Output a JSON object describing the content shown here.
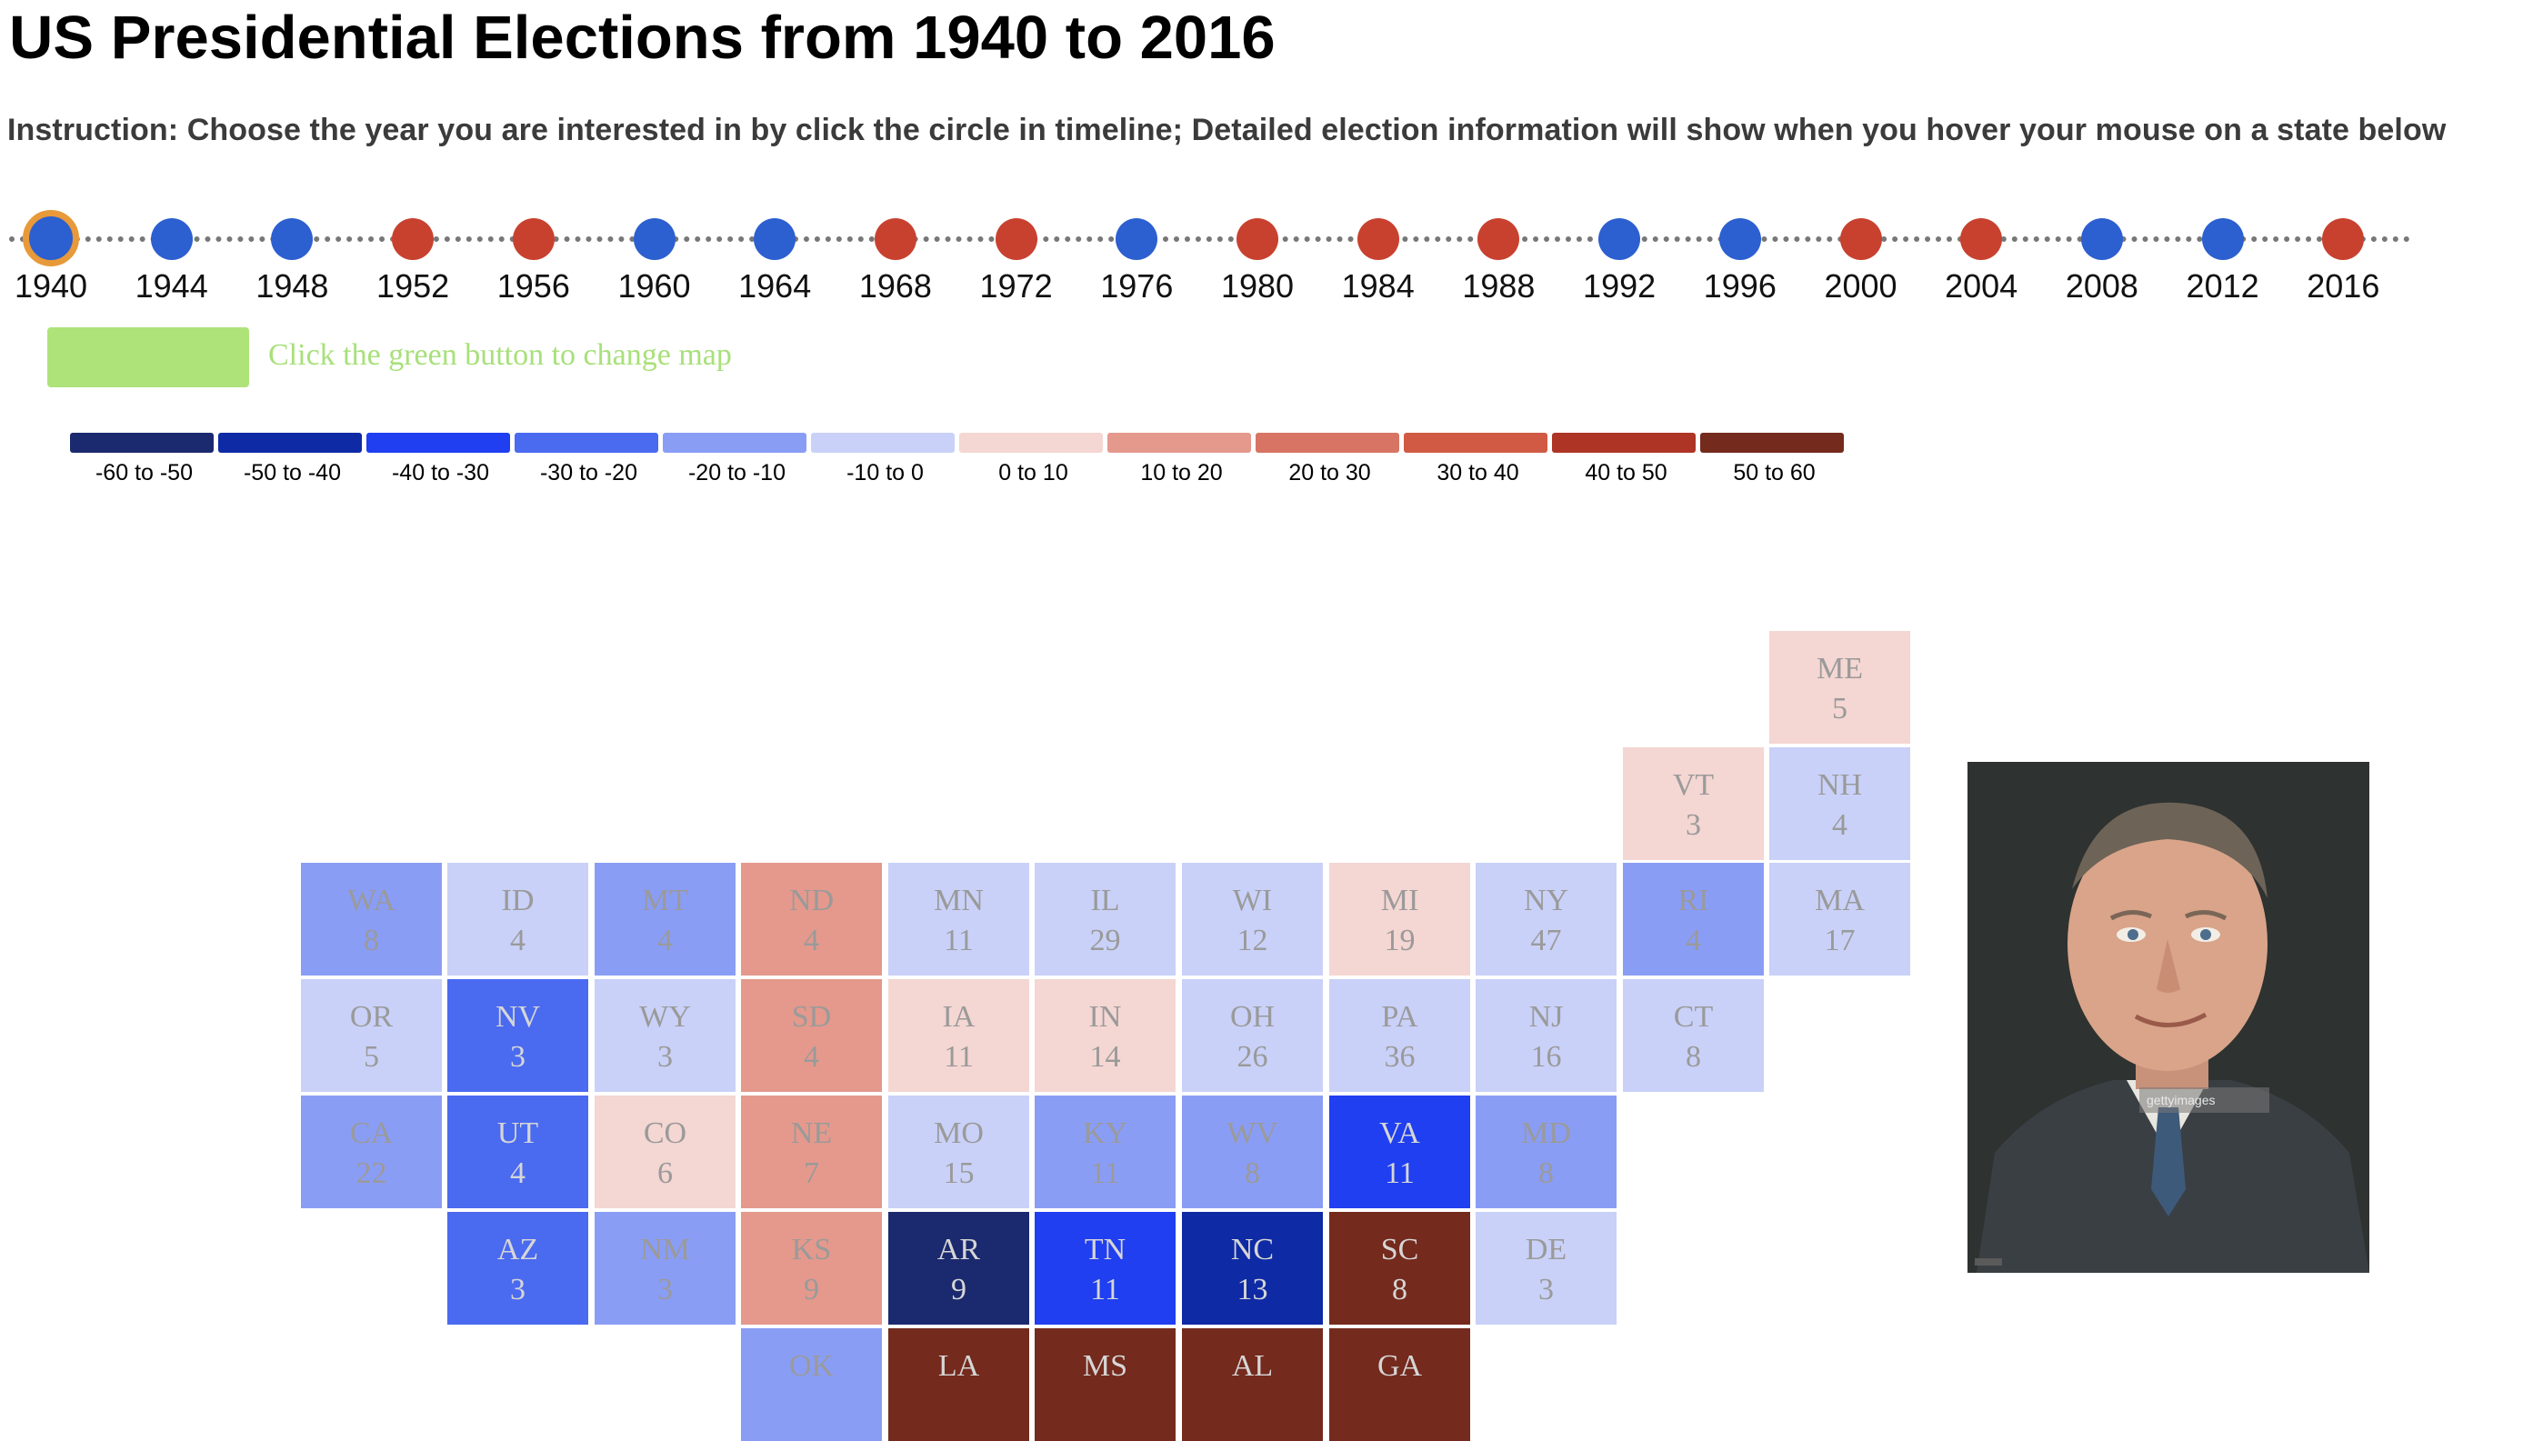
{
  "page": {
    "title": "US Presidential Elections from 1940 to 2016",
    "instruction": "Instruction: Choose the year you are interested in by click the circle in timeline; Detailed election information will show when you hover your mouse on a state below"
  },
  "timeline": {
    "selected_year": "1940",
    "selected_ring_color": "#e8993a",
    "years": [
      {
        "year": "1940",
        "party_color": "#2c5fcf"
      },
      {
        "year": "1944",
        "party_color": "#2c5fcf"
      },
      {
        "year": "1948",
        "party_color": "#2c5fcf"
      },
      {
        "year": "1952",
        "party_color": "#c8412f"
      },
      {
        "year": "1956",
        "party_color": "#c8412f"
      },
      {
        "year": "1960",
        "party_color": "#2c5fcf"
      },
      {
        "year": "1964",
        "party_color": "#2c5fcf"
      },
      {
        "year": "1968",
        "party_color": "#c8412f"
      },
      {
        "year": "1972",
        "party_color": "#c8412f"
      },
      {
        "year": "1976",
        "party_color": "#2c5fcf"
      },
      {
        "year": "1980",
        "party_color": "#c8412f"
      },
      {
        "year": "1984",
        "party_color": "#c8412f"
      },
      {
        "year": "1988",
        "party_color": "#c8412f"
      },
      {
        "year": "1992",
        "party_color": "#2c5fcf"
      },
      {
        "year": "1996",
        "party_color": "#2c5fcf"
      },
      {
        "year": "2000",
        "party_color": "#c8412f"
      },
      {
        "year": "2004",
        "party_color": "#c8412f"
      },
      {
        "year": "2008",
        "party_color": "#2c5fcf"
      },
      {
        "year": "2012",
        "party_color": "#2c5fcf"
      },
      {
        "year": "2016",
        "party_color": "#c8412f"
      }
    ]
  },
  "map_toggle": {
    "button_color": "#aee37a",
    "hint": "Click the green button to change map"
  },
  "legend": [
    {
      "label": "-60 to -50",
      "color": "#1b2a6e"
    },
    {
      "label": "-50 to -40",
      "color": "#0e2aa4"
    },
    {
      "label": "-40 to -30",
      "color": "#1f3ff0"
    },
    {
      "label": "-30 to -20",
      "color": "#4a6af0"
    },
    {
      "label": "-20 to -10",
      "color": "#8a9df5"
    },
    {
      "label": "-10 to 0",
      "color": "#c9d1f8"
    },
    {
      "label": "0 to 10",
      "color": "#f4d6d2"
    },
    {
      "label": "10 to 20",
      "color": "#e4998c"
    },
    {
      "label": "20 to 30",
      "color": "#d87464"
    },
    {
      "label": "30 to 40",
      "color": "#d05a44"
    },
    {
      "label": "40 to 50",
      "color": "#ae3426"
    },
    {
      "label": "50 to 60",
      "color": "#742a1d"
    }
  ],
  "states": [
    {
      "abbr": "ME",
      "ev": "5",
      "color": "#f4d6d2",
      "dark": false
    },
    {
      "abbr": "VT",
      "ev": "3",
      "color": "#f4d6d2",
      "dark": false
    },
    {
      "abbr": "NH",
      "ev": "4",
      "color": "#c9d1f8",
      "dark": false
    },
    {
      "abbr": "WA",
      "ev": "8",
      "color": "#8a9df5",
      "dark": false
    },
    {
      "abbr": "ID",
      "ev": "4",
      "color": "#c9d1f8",
      "dark": false
    },
    {
      "abbr": "MT",
      "ev": "4",
      "color": "#8a9df5",
      "dark": false
    },
    {
      "abbr": "ND",
      "ev": "4",
      "color": "#e4998c",
      "dark": false
    },
    {
      "abbr": "MN",
      "ev": "11",
      "color": "#c9d1f8",
      "dark": false
    },
    {
      "abbr": "IL",
      "ev": "29",
      "color": "#c9d1f8",
      "dark": false
    },
    {
      "abbr": "WI",
      "ev": "12",
      "color": "#c9d1f8",
      "dark": false
    },
    {
      "abbr": "MI",
      "ev": "19",
      "color": "#f4d6d2",
      "dark": false
    },
    {
      "abbr": "NY",
      "ev": "47",
      "color": "#c9d1f8",
      "dark": false
    },
    {
      "abbr": "RI",
      "ev": "4",
      "color": "#8a9df5",
      "dark": false
    },
    {
      "abbr": "MA",
      "ev": "17",
      "color": "#c9d1f8",
      "dark": false
    },
    {
      "abbr": "OR",
      "ev": "5",
      "color": "#c9d1f8",
      "dark": false
    },
    {
      "abbr": "NV",
      "ev": "3",
      "color": "#4a6af0",
      "dark": true
    },
    {
      "abbr": "WY",
      "ev": "3",
      "color": "#c9d1f8",
      "dark": false
    },
    {
      "abbr": "SD",
      "ev": "4",
      "color": "#e4998c",
      "dark": false
    },
    {
      "abbr": "IA",
      "ev": "11",
      "color": "#f4d6d2",
      "dark": false
    },
    {
      "abbr": "IN",
      "ev": "14",
      "color": "#f4d6d2",
      "dark": false
    },
    {
      "abbr": "OH",
      "ev": "26",
      "color": "#c9d1f8",
      "dark": false
    },
    {
      "abbr": "PA",
      "ev": "36",
      "color": "#c9d1f8",
      "dark": false
    },
    {
      "abbr": "NJ",
      "ev": "16",
      "color": "#c9d1f8",
      "dark": false
    },
    {
      "abbr": "CT",
      "ev": "8",
      "color": "#c9d1f8",
      "dark": false
    },
    {
      "abbr": "CA",
      "ev": "22",
      "color": "#8a9df5",
      "dark": false
    },
    {
      "abbr": "UT",
      "ev": "4",
      "color": "#4a6af0",
      "dark": true
    },
    {
      "abbr": "CO",
      "ev": "6",
      "color": "#f4d6d2",
      "dark": false
    },
    {
      "abbr": "NE",
      "ev": "7",
      "color": "#e4998c",
      "dark": false
    },
    {
      "abbr": "MO",
      "ev": "15",
      "color": "#c9d1f8",
      "dark": false
    },
    {
      "abbr": "KY",
      "ev": "11",
      "color": "#8a9df5",
      "dark": false
    },
    {
      "abbr": "WV",
      "ev": "8",
      "color": "#8a9df5",
      "dark": false
    },
    {
      "abbr": "VA",
      "ev": "11",
      "color": "#1f3ff0",
      "dark": true
    },
    {
      "abbr": "MD",
      "ev": "8",
      "color": "#8a9df5",
      "dark": false
    },
    {
      "abbr": "AZ",
      "ev": "3",
      "color": "#4a6af0",
      "dark": true
    },
    {
      "abbr": "NM",
      "ev": "3",
      "color": "#8a9df5",
      "dark": false
    },
    {
      "abbr": "KS",
      "ev": "9",
      "color": "#e4998c",
      "dark": false
    },
    {
      "abbr": "AR",
      "ev": "9",
      "color": "#1b2a6e",
      "dark": true
    },
    {
      "abbr": "TN",
      "ev": "11",
      "color": "#1f3ff0",
      "dark": true
    },
    {
      "abbr": "NC",
      "ev": "13",
      "color": "#0e2aa4",
      "dark": true
    },
    {
      "abbr": "SC",
      "ev": "8",
      "color": "#742a1d",
      "dark": true
    },
    {
      "abbr": "DE",
      "ev": "3",
      "color": "#c9d1f8",
      "dark": false
    },
    {
      "abbr": "OK",
      "ev": "",
      "color": "#8a9df5",
      "dark": false
    },
    {
      "abbr": "LA",
      "ev": "",
      "color": "#742a1d",
      "dark": true
    },
    {
      "abbr": "MS",
      "ev": "",
      "color": "#742a1d",
      "dark": true
    },
    {
      "abbr": "AL",
      "ev": "",
      "color": "#742a1d",
      "dark": true
    },
    {
      "abbr": "GA",
      "ev": "",
      "color": "#742a1d",
      "dark": true
    }
  ],
  "portrait": {
    "watermark": "gettyimages"
  }
}
